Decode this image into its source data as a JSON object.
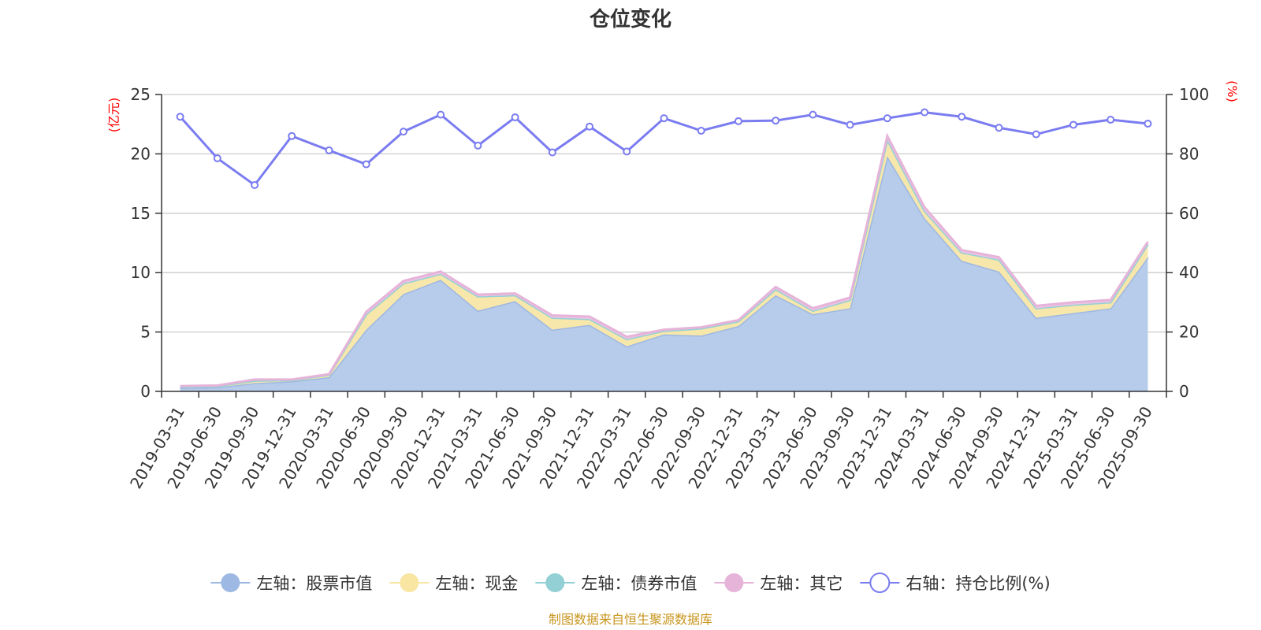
{
  "chart_data": {
    "type": "area",
    "title": "仓位变化",
    "left_unit": "(亿元)",
    "right_unit": "(%)",
    "x": [
      "2019-03-31",
      "2019-06-30",
      "2019-09-30",
      "2019-12-31",
      "2020-03-31",
      "2020-06-30",
      "2020-09-30",
      "2020-12-31",
      "2021-03-31",
      "2021-06-30",
      "2021-09-30",
      "2021-12-31",
      "2022-03-31",
      "2022-06-30",
      "2022-09-30",
      "2022-12-31",
      "2023-03-31",
      "2023-06-30",
      "2023-09-30",
      "2023-12-31",
      "2024-03-31",
      "2024-06-30",
      "2024-09-30",
      "2024-12-31",
      "2025-03-31",
      "2025-06-30",
      "2025-09-30"
    ],
    "y_left": {
      "min": 0,
      "max": 25,
      "ticks": [
        "0",
        "5",
        "10",
        "15",
        "20",
        "25"
      ]
    },
    "y_right": {
      "min": 0,
      "max": 100,
      "ticks": [
        "0",
        "20",
        "40",
        "60",
        "80",
        "100"
      ]
    },
    "stacked": true,
    "grid": true,
    "legend_position": "bottom",
    "series": [
      {
        "name": "左轴：股票市值",
        "axis": "left",
        "color": "#9db8e2",
        "fill": "#b7cbea",
        "values": [
          0.3,
          0.35,
          0.7,
          0.85,
          1.2,
          5.2,
          8.2,
          9.4,
          6.8,
          7.6,
          5.2,
          5.6,
          3.8,
          4.8,
          4.7,
          5.5,
          8.1,
          6.5,
          7.0,
          19.8,
          14.6,
          11.0,
          10.1,
          6.2,
          6.6,
          7.0,
          11.3
        ]
      },
      {
        "name": "左轴：现金",
        "axis": "left",
        "color": "#f8e6a2",
        "fill": "#f7e7ab",
        "values": [
          0.1,
          0.1,
          0.2,
          0.1,
          0.2,
          1.3,
          0.9,
          0.5,
          1.2,
          0.5,
          1.0,
          0.5,
          0.6,
          0.3,
          0.6,
          0.4,
          0.5,
          0.3,
          0.7,
          1.4,
          0.6,
          0.7,
          1.0,
          0.8,
          0.7,
          0.5,
          1.1
        ]
      },
      {
        "name": "左轴：债券市值",
        "axis": "left",
        "color": "#93d0d6",
        "fill": "#a9dadf",
        "values": [
          0,
          0,
          0,
          0,
          0,
          0,
          0,
          0,
          0,
          0,
          0,
          0,
          0,
          0,
          0,
          0,
          0,
          0,
          0,
          0,
          0,
          0,
          0,
          0,
          0,
          0,
          0
        ]
      },
      {
        "name": "左轴：其它",
        "axis": "left",
        "color": "#e6b3d9",
        "fill": "#eec5e4",
        "values": [
          0.05,
          0.05,
          0.1,
          0.05,
          0.05,
          0.2,
          0.2,
          0.2,
          0.15,
          0.15,
          0.2,
          0.2,
          0.2,
          0.1,
          0.1,
          0.1,
          0.2,
          0.2,
          0.2,
          0.3,
          0.3,
          0.2,
          0.2,
          0.2,
          0.2,
          0.2,
          0.2
        ]
      },
      {
        "name": "右轴：持仓比例(%)",
        "axis": "right",
        "color": "#7a7cf0",
        "values": [
          92.5,
          78.5,
          69.5,
          86,
          81.2,
          76.5,
          87.5,
          93.2,
          82.8,
          92.3,
          80.5,
          89.2,
          80.8,
          92,
          87.8,
          91,
          91.2,
          93.2,
          89.8,
          92,
          94,
          92.5,
          88.8,
          86.6,
          89.8,
          91.5,
          90.2
        ]
      }
    ],
    "source": "制图数据来自恒生聚源数据库"
  }
}
